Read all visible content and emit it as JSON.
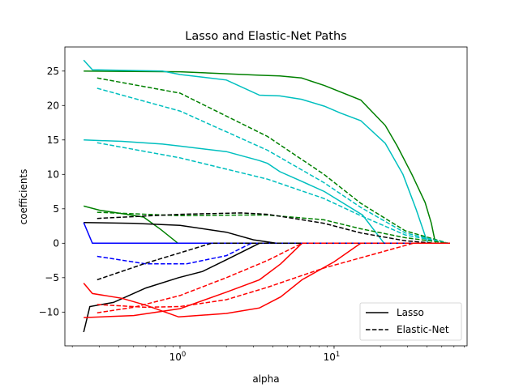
{
  "chart_data": {
    "type": "line",
    "title": "Lasso and Elastic-Net Paths",
    "xlabel": "alpha",
    "ylabel": "coefficients",
    "xscale": "log",
    "xlim": [
      0.179,
      73
    ],
    "ylim": [
      -14.9,
      28.5
    ],
    "xticks": [
      {
        "value": 1,
        "label": "10^0"
      },
      {
        "value": 10,
        "label": "10^1"
      }
    ],
    "yticks": [
      -10,
      -5,
      0,
      5,
      10,
      15,
      20,
      25
    ],
    "grid": false,
    "legend": {
      "placement": "lower-right",
      "entries": [
        {
          "label": "Lasso",
          "style": "solid",
          "color": "#000000"
        },
        {
          "label": "Elastic-Net",
          "style": "dashed",
          "color": "#000000"
        }
      ]
    },
    "series": [
      {
        "method": "Lasso",
        "style": "solid",
        "color": "#008000",
        "points": [
          [
            0.237,
            25.0
          ],
          [
            1.0,
            24.9
          ],
          [
            3.28,
            24.4
          ],
          [
            4.44,
            24.3
          ],
          [
            6.15,
            24.0
          ],
          [
            8.65,
            22.9
          ],
          [
            14.9,
            20.8
          ],
          [
            21.5,
            17.1
          ],
          [
            25.7,
            14.1
          ],
          [
            32,
            10
          ],
          [
            39,
            5.9
          ],
          [
            42.8,
            2.9
          ],
          [
            45.5,
            0
          ],
          [
            56.6,
            0
          ]
        ]
      },
      {
        "method": "Lasso",
        "style": "solid",
        "color": "#00bfbf",
        "points": [
          [
            0.237,
            26.6
          ],
          [
            0.27,
            25.2
          ],
          [
            0.77,
            25.0
          ],
          [
            1.0,
            24.5
          ],
          [
            2.0,
            23.7
          ],
          [
            3.28,
            21.5
          ],
          [
            4.44,
            21.4
          ],
          [
            6.15,
            20.9
          ],
          [
            8.65,
            19.9
          ],
          [
            11,
            18.9
          ],
          [
            14.9,
            17.8
          ],
          [
            21.5,
            14.5
          ],
          [
            28,
            10
          ],
          [
            34,
            5
          ],
          [
            40.5,
            0
          ],
          [
            56.6,
            0
          ]
        ]
      },
      {
        "method": "Lasso",
        "style": "solid",
        "color": "#00bfbf",
        "points": [
          [
            0.237,
            15.0
          ],
          [
            0.42,
            14.8
          ],
          [
            0.77,
            14.4
          ],
          [
            1.0,
            14.1
          ],
          [
            2.0,
            13.3
          ],
          [
            3.28,
            12.0
          ],
          [
            3.7,
            11.6
          ],
          [
            4.44,
            10.4
          ],
          [
            6.15,
            9.0
          ],
          [
            8.65,
            7.5
          ],
          [
            15.3,
            4.1
          ],
          [
            21.1,
            0
          ],
          [
            56.6,
            0
          ]
        ]
      },
      {
        "method": "Lasso",
        "style": "solid",
        "color": "#008000",
        "points": [
          [
            0.237,
            5.4
          ],
          [
            0.3,
            4.8
          ],
          [
            0.42,
            4.3
          ],
          [
            0.58,
            3.8
          ],
          [
            0.75,
            2.0
          ],
          [
            0.97,
            0
          ],
          [
            56.6,
            0
          ]
        ]
      },
      {
        "method": "Lasso",
        "style": "solid",
        "color": "#000000",
        "points": [
          [
            0.237,
            3.0
          ],
          [
            0.5,
            2.9
          ],
          [
            1.0,
            2.6
          ],
          [
            2.0,
            1.6
          ],
          [
            3.0,
            0.5
          ],
          [
            4.2,
            0
          ],
          [
            56.6,
            0
          ]
        ]
      },
      {
        "method": "Lasso",
        "style": "solid",
        "color": "#0000ff",
        "points": [
          [
            0.237,
            3.0
          ],
          [
            0.27,
            0
          ],
          [
            56.6,
            0
          ]
        ]
      },
      {
        "method": "Lasso",
        "style": "solid",
        "color": "#000000",
        "points": [
          [
            0.237,
            -12.9
          ],
          [
            0.26,
            -9.2
          ],
          [
            0.37,
            -8.6
          ],
          [
            0.6,
            -6.5
          ],
          [
            0.98,
            -5.0
          ],
          [
            1.4,
            -4.1
          ],
          [
            2.0,
            -2.4
          ],
          [
            3.28,
            0
          ],
          [
            56.6,
            0
          ]
        ]
      },
      {
        "method": "Lasso",
        "style": "solid",
        "color": "#ff0000",
        "points": [
          [
            0.237,
            -5.8
          ],
          [
            0.27,
            -7.3
          ],
          [
            0.42,
            -8.0
          ],
          [
            0.6,
            -9.0
          ],
          [
            0.98,
            -10.7
          ],
          [
            2.0,
            -10.2
          ],
          [
            3.28,
            -9.4
          ],
          [
            4.5,
            -7.8
          ],
          [
            6.2,
            -5.3
          ],
          [
            10,
            -2.7
          ],
          [
            14.9,
            0
          ],
          [
            56.6,
            0
          ]
        ]
      },
      {
        "method": "Lasso",
        "style": "solid",
        "color": "#ff0000",
        "points": [
          [
            0.237,
            -10.8
          ],
          [
            0.5,
            -10.5
          ],
          [
            1.0,
            -9.5
          ],
          [
            2.0,
            -7.1
          ],
          [
            3.28,
            -5.3
          ],
          [
            4.5,
            -3.0
          ],
          [
            6.2,
            0
          ],
          [
            56.6,
            0
          ]
        ]
      },
      {
        "method": "Elastic-Net",
        "style": "dashed",
        "color": "#008000",
        "points": [
          [
            0.29,
            24.0
          ],
          [
            1.0,
            21.8
          ],
          [
            3.7,
            15.5
          ],
          [
            8.6,
            10
          ],
          [
            14.9,
            5.8
          ],
          [
            29,
            1.8
          ],
          [
            55,
            0
          ]
        ]
      },
      {
        "method": "Elastic-Net",
        "style": "dashed",
        "color": "#00bfbf",
        "points": [
          [
            0.29,
            22.5
          ],
          [
            1.0,
            19.2
          ],
          [
            3.7,
            13.5
          ],
          [
            8.6,
            8.8
          ],
          [
            14.9,
            5.2
          ],
          [
            29,
            1.5
          ],
          [
            55,
            0
          ]
        ]
      },
      {
        "method": "Elastic-Net",
        "style": "dashed",
        "color": "#00bfbf",
        "points": [
          [
            0.29,
            14.6
          ],
          [
            1.0,
            12.4
          ],
          [
            3.7,
            9.3
          ],
          [
            8.6,
            6.5
          ],
          [
            14.9,
            4.0
          ],
          [
            29,
            1.2
          ],
          [
            55,
            0
          ]
        ]
      },
      {
        "method": "Elastic-Net",
        "style": "dashed",
        "color": "#008000",
        "points": [
          [
            0.29,
            4.5
          ],
          [
            1.0,
            4.0
          ],
          [
            2.5,
            4.1
          ],
          [
            3.7,
            4.1
          ],
          [
            8.6,
            3.4
          ],
          [
            14.9,
            2.1
          ],
          [
            29,
            0.8
          ],
          [
            55,
            0
          ]
        ]
      },
      {
        "method": "Elastic-Net",
        "style": "dashed",
        "color": "#000000",
        "points": [
          [
            0.29,
            3.6
          ],
          [
            1.0,
            4.2
          ],
          [
            2.5,
            4.4
          ],
          [
            3.7,
            4.2
          ],
          [
            8.6,
            2.9
          ],
          [
            14.9,
            1.5
          ],
          [
            29,
            0.35
          ],
          [
            45,
            0
          ],
          [
            55,
            0
          ]
        ]
      },
      {
        "method": "Elastic-Net",
        "style": "dashed",
        "color": "#0000ff",
        "points": [
          [
            0.29,
            -1.9
          ],
          [
            0.6,
            -3.0
          ],
          [
            1.1,
            -3.0
          ],
          [
            2.0,
            -1.8
          ],
          [
            2.9,
            0
          ],
          [
            55,
            0
          ]
        ]
      },
      {
        "method": "Elastic-Net",
        "style": "dashed",
        "color": "#000000",
        "points": [
          [
            0.29,
            -5.3
          ],
          [
            0.6,
            -2.9
          ],
          [
            1.4,
            -0.4
          ],
          [
            1.6,
            0
          ],
          [
            55,
            0
          ]
        ]
      },
      {
        "method": "Elastic-Net",
        "style": "dashed",
        "color": "#ff0000",
        "points": [
          [
            0.29,
            -8.9
          ],
          [
            0.6,
            -9.3
          ],
          [
            1.0,
            -9.2
          ],
          [
            2.0,
            -8.2
          ],
          [
            3.7,
            -6.4
          ],
          [
            8.6,
            -3.6
          ],
          [
            32.7,
            0
          ],
          [
            55,
            0
          ]
        ]
      },
      {
        "method": "Elastic-Net",
        "style": "dashed",
        "color": "#ff0000",
        "points": [
          [
            0.29,
            -10.1
          ],
          [
            0.5,
            -9.3
          ],
          [
            1.0,
            -7.6
          ],
          [
            2.0,
            -5.0
          ],
          [
            3.7,
            -2.5
          ],
          [
            6.2,
            0
          ],
          [
            55,
            0
          ]
        ]
      }
    ]
  }
}
